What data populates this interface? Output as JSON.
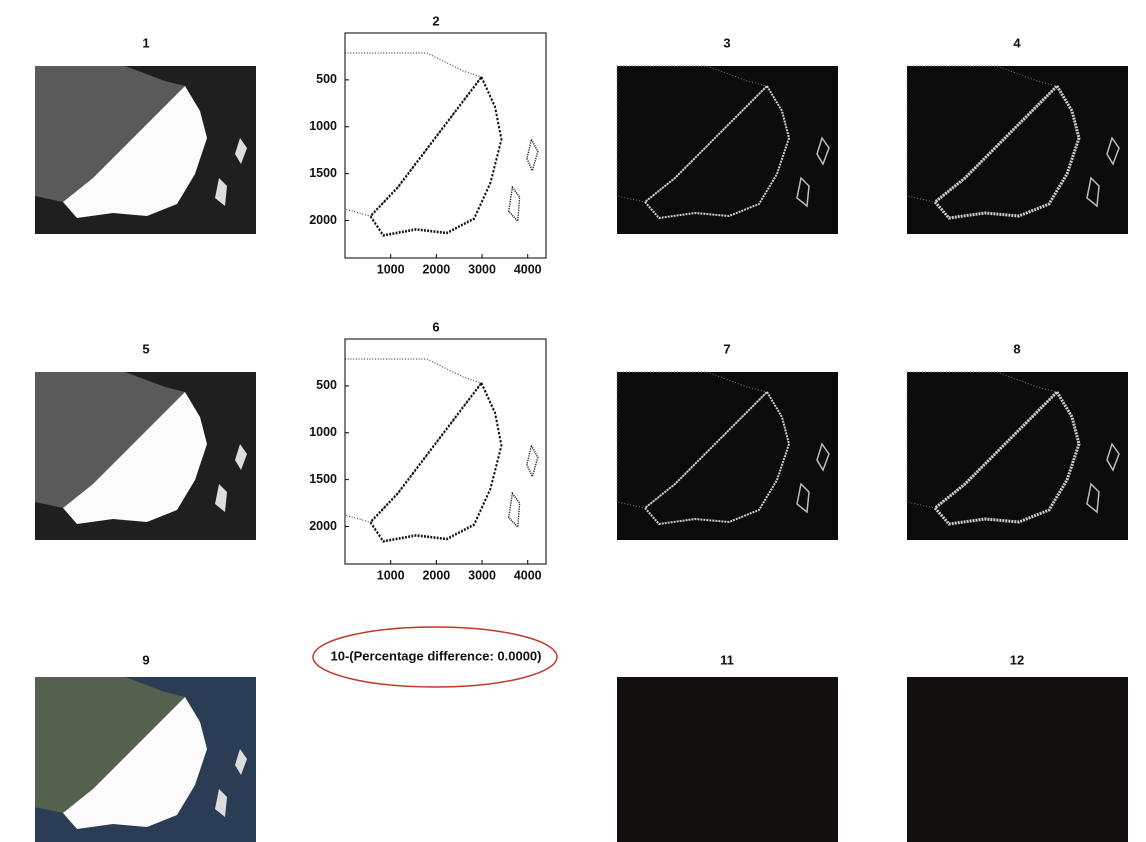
{
  "panels": [
    {
      "title": "1"
    },
    {
      "title": "2",
      "xlim": [
        0,
        4400
      ],
      "ylim": [
        0,
        2400
      ],
      "xticks": [
        1000,
        2000,
        3000,
        4000
      ],
      "yticks": [
        500,
        1000,
        1500,
        2000
      ]
    },
    {
      "title": "3"
    },
    {
      "title": "4"
    },
    {
      "title": "5"
    },
    {
      "title": "6",
      "xlim": [
        0,
        4400
      ],
      "ylim": [
        0,
        2400
      ],
      "xticks": [
        1000,
        2000,
        3000,
        4000
      ],
      "yticks": [
        500,
        1000,
        1500,
        2000
      ]
    },
    {
      "title": "7"
    },
    {
      "title": "8"
    },
    {
      "title": "9"
    },
    {
      "title": "10-(Percentage difference: 0.0000)"
    },
    {
      "title": "11"
    },
    {
      "title": "12"
    }
  ]
}
